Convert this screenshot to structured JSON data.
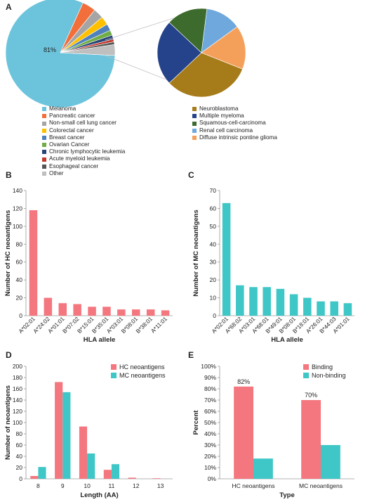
{
  "colors": {
    "hc": "#f4777f",
    "mc": "#3fc6c6",
    "axis": "#9a9a9a",
    "text": "#222222"
  },
  "chart_data": [
    {
      "panel": "A",
      "type": "pie",
      "highlight_label": "81%",
      "slices": [
        {
          "label": "Melanoma",
          "value": 81,
          "color": "#6cc4dc"
        },
        {
          "label": "Pancreatic cancer",
          "value": 4,
          "color": "#f26f3b"
        },
        {
          "label": "Non-small cell lung cancer",
          "value": 3,
          "color": "#a5a5a5"
        },
        {
          "label": "Colorectal cancer",
          "value": 2.5,
          "color": "#ffc000"
        },
        {
          "label": "Breast cancer",
          "value": 2,
          "color": "#4f81bd"
        },
        {
          "label": "Ovarian Cancer",
          "value": 1.5,
          "color": "#70ad47"
        },
        {
          "label": "Chronic lymphocytic leukemia",
          "value": 1.2,
          "color": "#264478"
        },
        {
          "label": "Acute myeloid leukemia",
          "value": 0.8,
          "color": "#c0392b"
        },
        {
          "label": "Esophageal cancer",
          "value": 0.8,
          "color": "#555555"
        },
        {
          "label": "Other",
          "value": 3.2,
          "color": "#bfbfbf"
        }
      ],
      "breakout": [
        {
          "label": "Neuroblastoma",
          "value": 32,
          "color": "#a67c1b"
        },
        {
          "label": "Multiple myeloma",
          "value": 24,
          "color": "#24438a"
        },
        {
          "label": "Squamous-cell-carcinoma",
          "value": 15,
          "color": "#3d6b2e"
        },
        {
          "label": "Renal cell carcinoma",
          "value": 13,
          "color": "#6fa8dc"
        },
        {
          "label": "Diffuse intrinsic pontine glioma",
          "value": 16,
          "color": "#f5a05a"
        }
      ]
    },
    {
      "panel": "B",
      "type": "bar",
      "categories": [
        "A*02:01",
        "A*24:02",
        "A*01:01",
        "B*07:02",
        "B*15:01",
        "B*35:01",
        "A*03:01",
        "B*08:01",
        "B*38:01",
        "A*11:01"
      ],
      "values": [
        118,
        20,
        14,
        13,
        10,
        10,
        7,
        7,
        7,
        6
      ],
      "xlabel": "HLA allele",
      "ylabel": "Number of HC neoantigens",
      "ylim": [
        0,
        140
      ],
      "yticks": [
        0,
        20,
        40,
        60,
        80,
        100,
        120,
        140
      ]
    },
    {
      "panel": "C",
      "type": "bar",
      "categories": [
        "A*02:01",
        "A*68:02",
        "A*03:01",
        "A*68:01",
        "B*49:01",
        "B*08:01",
        "B*18:01",
        "A*26:01",
        "B*44:03",
        "A*01:01"
      ],
      "values": [
        63,
        17,
        16,
        16,
        15,
        12,
        10,
        8,
        8,
        7
      ],
      "xlabel": "HLA allele",
      "ylabel": "Number of MC neoantigens",
      "ylim": [
        0,
        70
      ],
      "yticks": [
        0,
        10,
        20,
        30,
        40,
        50,
        60,
        70
      ]
    },
    {
      "panel": "D",
      "type": "bar",
      "categories": [
        "8",
        "9",
        "10",
        "11",
        "12",
        "13"
      ],
      "series": [
        {
          "name": "HC neoantigens",
          "values": [
            5,
            172,
            93,
            16,
            2,
            1
          ]
        },
        {
          "name": "MC neoantigens",
          "values": [
            21,
            154,
            45,
            26,
            0,
            0
          ]
        }
      ],
      "xlabel": "Length (AA)",
      "ylabel": "Number of neoantigens",
      "ylim": [
        0,
        200
      ],
      "yticks": [
        0,
        20,
        40,
        60,
        80,
        100,
        120,
        140,
        160,
        180,
        200
      ],
      "legend": "top-right"
    },
    {
      "panel": "E",
      "type": "bar",
      "categories": [
        "HC neoantigens",
        "MC neoantigens"
      ],
      "series": [
        {
          "name": "Binding",
          "values": [
            82,
            70
          ]
        },
        {
          "name": "Non-binding",
          "values": [
            18,
            30
          ]
        }
      ],
      "data_labels": [
        "82%",
        "70%"
      ],
      "xlabel": "Type",
      "ylabel": "Percent",
      "ylim": [
        0,
        100
      ],
      "yticks": [
        "0%",
        "10%",
        "20%",
        "30%",
        "40%",
        "50%",
        "60%",
        "70%",
        "80%",
        "90%",
        "100%"
      ],
      "legend": "top-right"
    }
  ],
  "panel_letters": [
    "A",
    "B",
    "C",
    "D",
    "E"
  ]
}
